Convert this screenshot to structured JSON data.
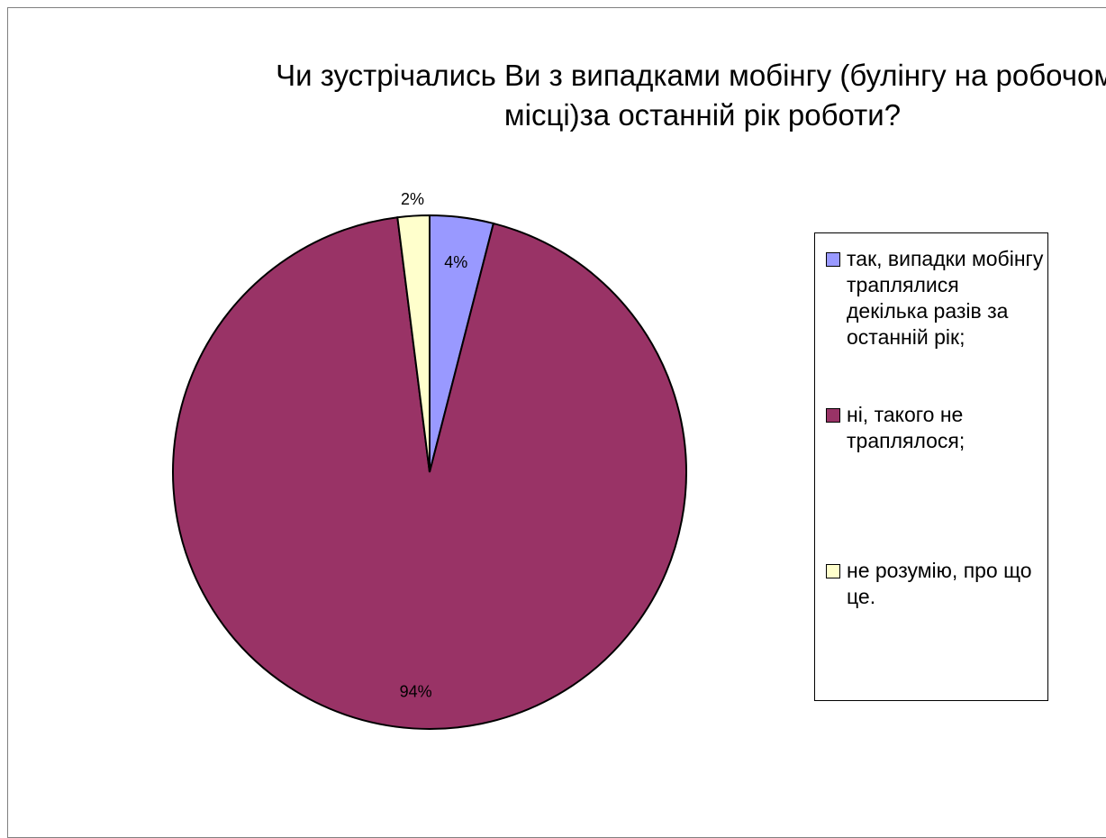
{
  "chart_data": {
    "type": "pie",
    "title": "Чи зустрічались Ви з випадками мобінгу (булінгу на робочому місці)за останній рік роботи?",
    "legend_position": "right",
    "slices": [
      {
        "label": "так, випадки мобінгу траплялися декілька разів за останній рік;",
        "value": 4,
        "data_label": "4%",
        "color": "#9999ff"
      },
      {
        "label": "ні, такого не траплялося;",
        "value": 94,
        "data_label": "94%",
        "color": "#993366"
      },
      {
        "label": "не розумію, про що це.",
        "value": 2,
        "data_label": "2%",
        "color": "#ffffcc"
      }
    ]
  }
}
